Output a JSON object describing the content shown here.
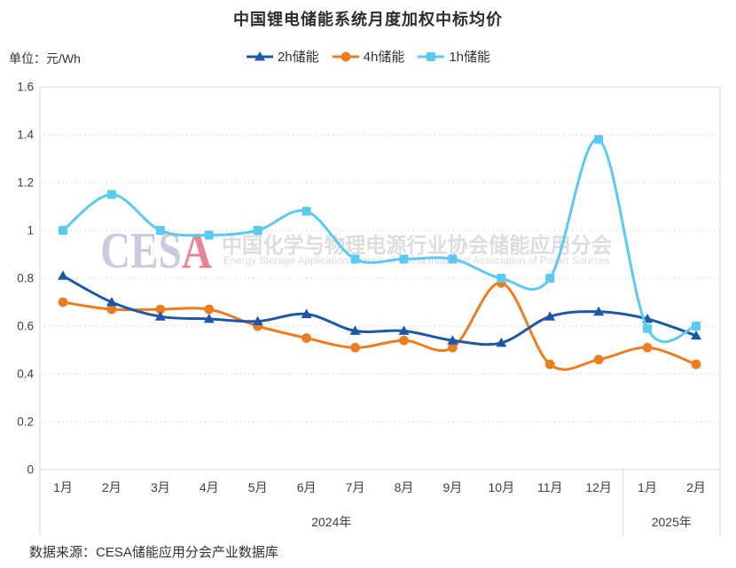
{
  "title": "中国锂电储能系统月度加权中标均价",
  "unit_label": "单位：元/Wh",
  "footer": "数据来源：CESA储能应用分会产业数据库",
  "watermark": {
    "logo_text": "CESA",
    "logo_colors": {
      "CES": "#c7c5dd",
      "A": "#e37a8d"
    },
    "cn_text": "中国化学与物理电源行业协会储能应用分会",
    "en_text": "Energy Storage Application Branch of China Industrial Association of Power Sources",
    "cn_color": "#dadada",
    "en_color": "#d6d6d6"
  },
  "colors": {
    "grid": "#d9d9d9",
    "border": "#d9d9d9",
    "axis_text": "#404040",
    "title_text": "#2d2d2d"
  },
  "chart_data": {
    "type": "line",
    "smooth": true,
    "title": "中国锂电储能系统月度加权中标均价",
    "ylabel": "元/Wh",
    "categories": [
      "1月",
      "2月",
      "3月",
      "4月",
      "5月",
      "6月",
      "7月",
      "8月",
      "9月",
      "10月",
      "11月",
      "12月",
      "1月",
      "2月"
    ],
    "category_groups": [
      {
        "label": "2024年",
        "months": 12
      },
      {
        "label": "2025年",
        "months": 2
      }
    ],
    "series": [
      {
        "name": "2h储能",
        "key": "2h",
        "color": "#1d57a8",
        "marker": "triangle",
        "values": [
          0.81,
          0.7,
          0.64,
          0.63,
          0.62,
          0.65,
          0.58,
          0.58,
          0.54,
          0.53,
          0.64,
          0.66,
          0.63,
          0.56
        ]
      },
      {
        "name": "4h储能",
        "key": "4h",
        "color": "#ec7d21",
        "marker": "circle",
        "values": [
          0.7,
          0.67,
          0.67,
          0.67,
          0.6,
          0.55,
          0.51,
          0.54,
          0.51,
          0.78,
          0.44,
          0.46,
          0.51,
          0.44
        ]
      },
      {
        "name": "1h储能",
        "key": "1h",
        "color": "#5cc9f2",
        "marker": "square",
        "values": [
          1.0,
          1.15,
          1.0,
          0.98,
          1.0,
          1.08,
          0.88,
          0.88,
          0.88,
          0.8,
          0.8,
          1.38,
          0.59,
          0.6
        ]
      }
    ],
    "draw_order": [
      1,
      0,
      2
    ],
    "ylim": [
      0,
      1.6
    ],
    "ytick_step": 0.2,
    "ytick_labels": [
      "0",
      "0.2",
      "0.4",
      "0.6",
      "0.8",
      "1",
      "1.2",
      "1.4",
      "1.6"
    ],
    "grid": "horizontal-dotted",
    "legend_position": "top"
  }
}
